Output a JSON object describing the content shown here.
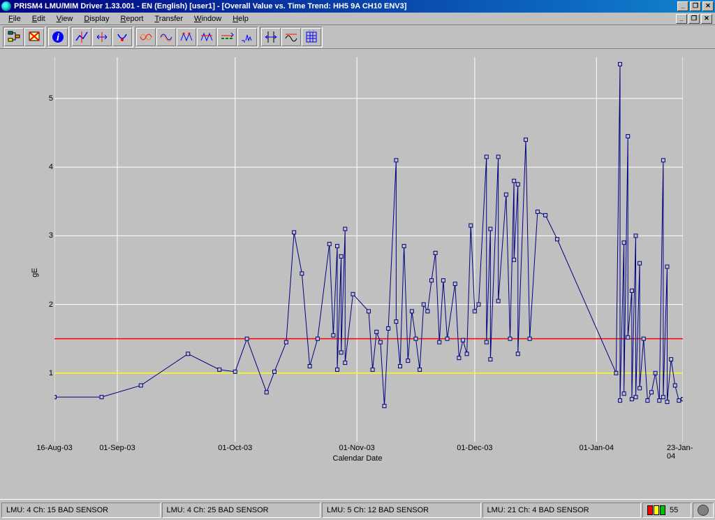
{
  "window": {
    "title": "PRISM4 LMU/MIM Driver 1.33.001 - EN (English) [user1] - [Overall Value vs. Time Trend: HH5 9A CH10 ENV3]"
  },
  "menu": {
    "items": [
      "File",
      "Edit",
      "View",
      "Display",
      "Report",
      "Transfer",
      "Window",
      "Help"
    ]
  },
  "toolbar": {
    "icons": [
      "hierarchy-icon",
      "filter-off-icon",
      "info-icon",
      "trend-cursor-icon",
      "width-icon",
      "return-min-icon",
      "envelope-icon",
      "wave1-icon",
      "wave2-icon",
      "wave3-icon",
      "wave4-icon",
      "axis-range-icon",
      "curve-fit-icon",
      "autoscale-icon",
      "grid-icon"
    ]
  },
  "chart": {
    "type": "line",
    "ylabel": "gE",
    "xlabel": "Calendar Date",
    "ylim": [
      0,
      5.6
    ],
    "yticks": [
      1,
      2,
      3,
      4,
      5
    ],
    "xlim": [
      0,
      160
    ],
    "xticks": [
      {
        "pos": 0,
        "label": "16-Aug-03"
      },
      {
        "pos": 16,
        "label": "01-Sep-03"
      },
      {
        "pos": 46,
        "label": "01-Oct-03"
      },
      {
        "pos": 77,
        "label": "01-Nov-03"
      },
      {
        "pos": 107,
        "label": "01-Dec-03"
      },
      {
        "pos": 138,
        "label": "01-Jan-04"
      },
      {
        "pos": 160,
        "label": "23-Jan-04"
      }
    ],
    "grid_color": "#ffffff",
    "background_color": "#c0c0c0",
    "series_color": "#000080",
    "marker_color": "#000080",
    "threshold_lines": [
      {
        "y": 1.0,
        "color": "#ffff00"
      },
      {
        "y": 1.5,
        "color": "#ff0000"
      }
    ],
    "data": [
      [
        0,
        0.65
      ],
      [
        12,
        0.65
      ],
      [
        22,
        0.82
      ],
      [
        34,
        1.28
      ],
      [
        42,
        1.05
      ],
      [
        46,
        1.02
      ],
      [
        49,
        1.5
      ],
      [
        54,
        0.72
      ],
      [
        56,
        1.02
      ],
      [
        59,
        1.45
      ],
      [
        61,
        3.05
      ],
      [
        63,
        2.45
      ],
      [
        65,
        1.1
      ],
      [
        67,
        1.5
      ],
      [
        70,
        2.88
      ],
      [
        71,
        1.55
      ],
      [
        72,
        2.85
      ],
      [
        72,
        1.05
      ],
      [
        73,
        2.7
      ],
      [
        73,
        1.3
      ],
      [
        74,
        3.1
      ],
      [
        74,
        1.15
      ],
      [
        76,
        2.15
      ],
      [
        80,
        1.9
      ],
      [
        81,
        1.05
      ],
      [
        82,
        1.6
      ],
      [
        83,
        1.45
      ],
      [
        84,
        0.52
      ],
      [
        85,
        1.65
      ],
      [
        87,
        4.1
      ],
      [
        87,
        1.75
      ],
      [
        88,
        1.1
      ],
      [
        89,
        2.85
      ],
      [
        90,
        1.18
      ],
      [
        91,
        1.9
      ],
      [
        92,
        1.5
      ],
      [
        93,
        1.05
      ],
      [
        94,
        2.0
      ],
      [
        95,
        1.9
      ],
      [
        96,
        2.35
      ],
      [
        97,
        2.75
      ],
      [
        98,
        1.45
      ],
      [
        99,
        2.35
      ],
      [
        100,
        1.5
      ],
      [
        102,
        2.3
      ],
      [
        103,
        1.22
      ],
      [
        104,
        1.48
      ],
      [
        105,
        1.28
      ],
      [
        106,
        3.15
      ],
      [
        107,
        1.9
      ],
      [
        108,
        2.0
      ],
      [
        110,
        4.15
      ],
      [
        110,
        1.45
      ],
      [
        111,
        3.1
      ],
      [
        111,
        1.2
      ],
      [
        113,
        4.15
      ],
      [
        113,
        2.05
      ],
      [
        115,
        3.6
      ],
      [
        116,
        1.5
      ],
      [
        117,
        3.8
      ],
      [
        117,
        2.65
      ],
      [
        118,
        3.75
      ],
      [
        118,
        1.28
      ],
      [
        120,
        4.4
      ],
      [
        121,
        1.5
      ],
      [
        123,
        3.35
      ],
      [
        125,
        3.3
      ],
      [
        128,
        2.95
      ],
      [
        143,
        1.0
      ],
      [
        144,
        5.5
      ],
      [
        144,
        0.6
      ],
      [
        145,
        2.9
      ],
      [
        145,
        0.7
      ],
      [
        146,
        4.45
      ],
      [
        146,
        1.52
      ],
      [
        147,
        2.2
      ],
      [
        147,
        0.62
      ],
      [
        148,
        3.0
      ],
      [
        148,
        0.65
      ],
      [
        149,
        2.6
      ],
      [
        149,
        0.78
      ],
      [
        150,
        1.5
      ],
      [
        151,
        0.6
      ],
      [
        152,
        0.72
      ],
      [
        153,
        1.0
      ],
      [
        154,
        0.6
      ],
      [
        155,
        4.1
      ],
      [
        155,
        0.65
      ],
      [
        156,
        2.55
      ],
      [
        156,
        0.58
      ],
      [
        157,
        1.2
      ],
      [
        158,
        0.82
      ],
      [
        159,
        0.6
      ],
      [
        160,
        0.62
      ]
    ]
  },
  "statusbar": {
    "panes": [
      "LMU: 4 Ch: 15 BAD SENSOR",
      "LMU: 4 Ch: 25 BAD SENSOR",
      "LMU: 5 Ch: 12 BAD SENSOR",
      "LMU: 21 Ch: 4 BAD SENSOR"
    ],
    "value": "55"
  }
}
